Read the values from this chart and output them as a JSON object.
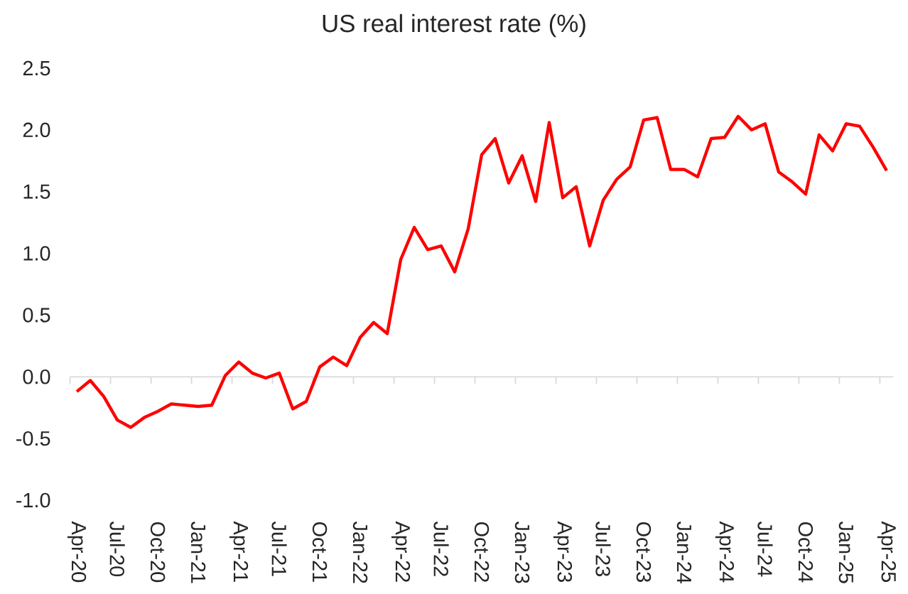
{
  "chart_data": {
    "type": "line",
    "title": "US real interest rate (%)",
    "categories": [
      "Apr-20",
      null,
      null,
      "Jul-20",
      null,
      null,
      "Oct-20",
      null,
      null,
      "Jan-21",
      null,
      null,
      "Apr-21",
      null,
      null,
      "Jul-21",
      null,
      null,
      "Oct-21",
      null,
      null,
      "Jan-22",
      null,
      null,
      "Apr-22",
      null,
      null,
      "Jul-22",
      null,
      null,
      "Oct-22",
      null,
      null,
      "Jan-23",
      null,
      null,
      "Apr-23",
      null,
      null,
      "Jul-23",
      null,
      null,
      "Oct-23",
      null,
      null,
      "Jan-24",
      null,
      null,
      "Apr-24",
      null,
      null,
      "Jul-24",
      null,
      null,
      "Oct-24",
      null,
      null,
      "Jan-25",
      null,
      null,
      "Apr-25"
    ],
    "color": "#ff0000",
    "values": [
      -0.12,
      -0.03,
      -0.16,
      -0.35,
      -0.41,
      -0.33,
      -0.28,
      -0.22,
      -0.23,
      -0.24,
      -0.23,
      0.01,
      0.12,
      0.03,
      -0.01,
      0.03,
      -0.26,
      -0.2,
      0.08,
      0.16,
      0.09,
      0.32,
      0.44,
      0.35,
      0.95,
      1.21,
      1.03,
      1.06,
      0.85,
      1.2,
      1.8,
      1.93,
      1.57,
      1.79,
      1.42,
      2.06,
      1.45,
      1.54,
      1.06,
      1.43,
      1.6,
      1.7,
      2.08,
      2.1,
      1.68,
      1.68,
      1.62,
      1.93,
      1.94,
      2.11,
      2.0,
      2.05,
      1.66,
      1.58,
      1.48,
      1.96,
      1.83,
      2.05,
      2.03,
      1.86,
      1.67
    ],
    "ylim": [
      -1.0,
      2.5
    ],
    "yticks": [
      {
        "value": -1.0,
        "label": "-1.0"
      },
      {
        "value": -0.5,
        "label": "-0.5"
      },
      {
        "value": 0.0,
        "label": "0.0"
      },
      {
        "value": 0.5,
        "label": "0.5"
      },
      {
        "value": 1.0,
        "label": "1.0"
      },
      {
        "value": 1.5,
        "label": "1.5"
      },
      {
        "value": 2.0,
        "label": "2.0"
      },
      {
        "value": 2.5,
        "label": "2.5"
      }
    ]
  }
}
